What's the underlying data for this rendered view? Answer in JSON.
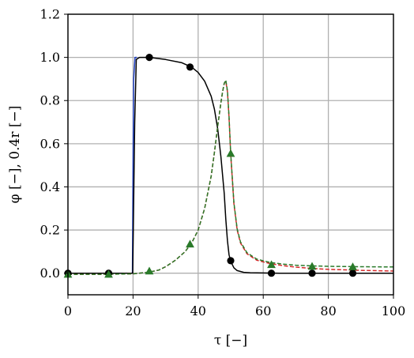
{
  "chart_data": {
    "type": "line",
    "xlabel": "τ [−]",
    "ylabel": "φ [−], 0.4r [−]",
    "xlim": [
      0,
      100
    ],
    "ylim": [
      -0.1,
      1.2
    ],
    "xticks": [
      "0",
      "20",
      "40",
      "60",
      "80",
      "100"
    ],
    "yticks": [
      "0.0",
      "0.2",
      "0.4",
      "0.6",
      "0.8",
      "1.0",
      "1.2"
    ],
    "grid": true,
    "series": [
      {
        "color": "#1f3fbf",
        "style": "solid",
        "x": [
          0,
          19.8,
          20.0,
          20.2,
          20.6,
          21.2
        ],
        "y": [
          0.0,
          0.0,
          0.5,
          0.9,
          1.0,
          1.0
        ]
      },
      {
        "color": "#000000",
        "style": "solid",
        "x": [
          0,
          19.9,
          20.5,
          21.0,
          22,
          25,
          30,
          35,
          38,
          40,
          42,
          44,
          45,
          46,
          47,
          48,
          48.5,
          49,
          49.5,
          50,
          51,
          52,
          54,
          56,
          60,
          65,
          70,
          80,
          90,
          100
        ],
        "y": [
          0.0,
          0.0,
          0.7,
          0.99,
          1.0,
          1.0,
          0.99,
          0.975,
          0.955,
          0.93,
          0.89,
          0.82,
          0.76,
          0.67,
          0.54,
          0.37,
          0.25,
          0.15,
          0.085,
          0.055,
          0.025,
          0.012,
          0.004,
          0.002,
          0.001,
          0.0,
          0.0,
          0.0,
          0.0,
          0.0
        ],
        "markers": {
          "shape": "circle",
          "x": [
            0,
            12.5,
            25,
            37.5,
            50,
            62.5,
            75,
            87.5
          ],
          "y": [
            0.0,
            0.0,
            1.0,
            0.955,
            0.058,
            0.0,
            0.0,
            0.0
          ]
        }
      },
      {
        "color": "#d62728",
        "style": "dashed",
        "x": [
          0,
          10,
          20,
          25,
          28,
          30,
          33,
          36,
          38,
          40,
          42,
          44,
          45,
          46,
          47,
          47.5,
          48,
          48.5,
          49,
          49.5,
          50,
          51,
          52,
          53,
          55,
          58,
          62,
          66,
          70,
          75,
          80,
          90,
          100
        ],
        "y": [
          -0.005,
          -0.005,
          -0.003,
          0.005,
          0.015,
          0.03,
          0.06,
          0.1,
          0.14,
          0.2,
          0.3,
          0.45,
          0.56,
          0.68,
          0.79,
          0.84,
          0.88,
          0.89,
          0.84,
          0.72,
          0.55,
          0.32,
          0.2,
          0.14,
          0.09,
          0.06,
          0.045,
          0.035,
          0.028,
          0.022,
          0.018,
          0.013,
          0.01
        ]
      },
      {
        "color": "#2a7a2a",
        "style": "dashed",
        "x": [
          0,
          10,
          20,
          25,
          28,
          30,
          33,
          36,
          38,
          40,
          42,
          44,
          45,
          46,
          47,
          47.5,
          48,
          48.5,
          49,
          49.5,
          50,
          51,
          52,
          53,
          55,
          58,
          62,
          66,
          70,
          75,
          80,
          90,
          100
        ],
        "y": [
          -0.005,
          -0.005,
          -0.003,
          0.005,
          0.015,
          0.03,
          0.06,
          0.1,
          0.14,
          0.2,
          0.3,
          0.45,
          0.56,
          0.68,
          0.79,
          0.84,
          0.88,
          0.895,
          0.845,
          0.725,
          0.555,
          0.325,
          0.205,
          0.145,
          0.095,
          0.065,
          0.05,
          0.042,
          0.037,
          0.034,
          0.032,
          0.03,
          0.029
        ],
        "markers": {
          "shape": "triangle",
          "x": [
            0,
            12.5,
            25,
            37.5,
            50,
            62.5,
            75,
            87.5
          ],
          "y": [
            -0.005,
            -0.005,
            0.01,
            0.135,
            0.555,
            0.04,
            0.032,
            0.03
          ]
        }
      }
    ]
  }
}
